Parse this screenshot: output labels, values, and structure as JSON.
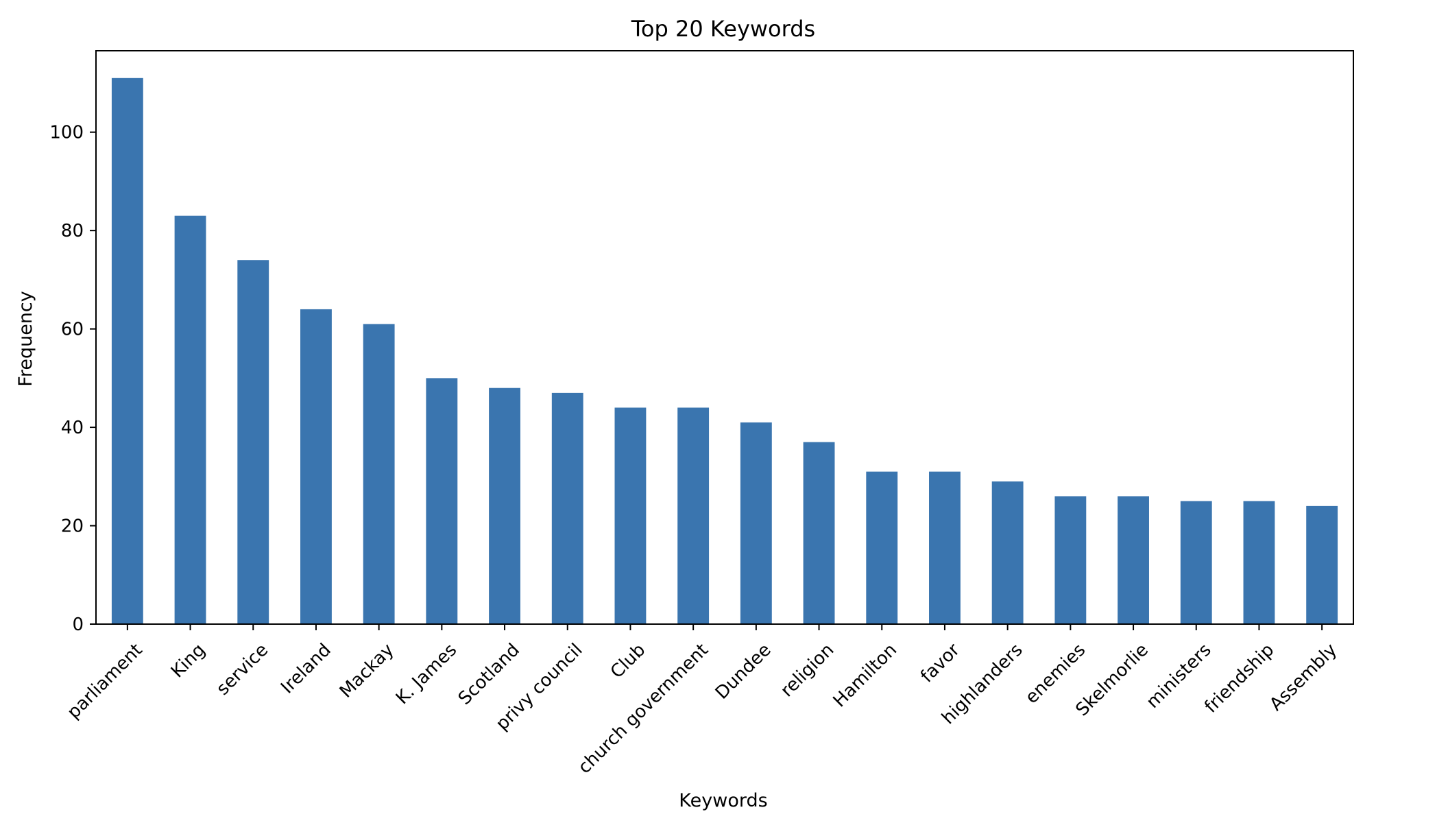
{
  "chart_data": {
    "type": "bar",
    "title": "Top 20 Keywords",
    "xlabel": "Keywords",
    "ylabel": "Frequency",
    "categories": [
      "parliament",
      "King",
      "service",
      "Ireland",
      "Mackay",
      "K. James",
      "Scotland",
      "privy council",
      "Club",
      "church government",
      "Dundee",
      "religion",
      "Hamilton",
      "favor",
      "highlanders",
      "enemies",
      "Skelmorlie",
      "ministers",
      "friendship",
      "Assembly"
    ],
    "values": [
      111,
      83,
      74,
      64,
      61,
      50,
      48,
      47,
      44,
      44,
      41,
      37,
      31,
      31,
      29,
      26,
      26,
      25,
      25,
      24
    ],
    "ylim": [
      0,
      116.55
    ],
    "yticks": [
      0,
      20,
      40,
      60,
      80,
      100
    ],
    "grid": false,
    "legend": "none",
    "bar_color": "#3a75af"
  }
}
